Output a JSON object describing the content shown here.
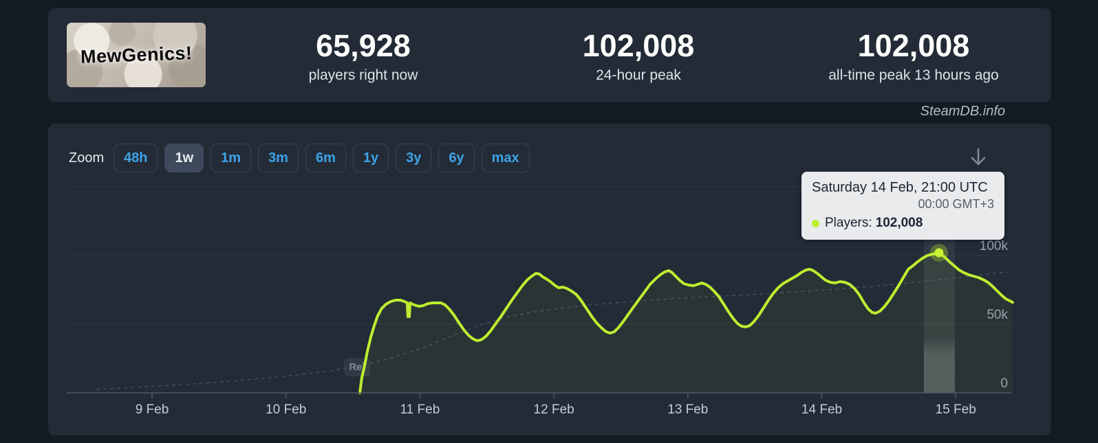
{
  "header": {
    "game_title": "MewGenics!",
    "stats": [
      {
        "value": "65,928",
        "label": "players right now"
      },
      {
        "value": "102,008",
        "label": "24-hour peak"
      },
      {
        "value": "102,008",
        "label": "all-time peak 13 hours ago"
      }
    ]
  },
  "watermark": "SteamDB.info",
  "chart": {
    "zoom_label": "Zoom",
    "zoom_buttons": [
      {
        "label": "48h",
        "selected": false
      },
      {
        "label": "1w",
        "selected": true
      },
      {
        "label": "1m",
        "selected": false
      },
      {
        "label": "3m",
        "selected": false
      },
      {
        "label": "6m",
        "selected": false
      },
      {
        "label": "1y",
        "selected": false
      },
      {
        "label": "3y",
        "selected": false
      },
      {
        "label": "6y",
        "selected": false
      },
      {
        "label": "max",
        "selected": false
      }
    ],
    "release_flag_label": "Rel",
    "tooltip": {
      "title": "Saturday 14 Feb, 21:00 UTC",
      "subtitle": "00:00 GMT+3",
      "series_label": "Players:",
      "value": "102,008"
    }
  },
  "colors": {
    "page_bg": "#141a21",
    "panel_bg": "#222b36",
    "accent_green": "#bdee2f",
    "accent_blue": "#3fa3e8",
    "tooltip_bg": "#e9ebed",
    "gridline": "#2e3842",
    "axis_line": "#4e5a66"
  },
  "chart_data": {
    "type": "line",
    "title": "",
    "x_axis": {
      "unit": "days since 9 Feb 00:00 UTC",
      "tick_values": [
        0,
        1,
        2,
        3,
        4,
        5,
        6
      ],
      "tick_labels": [
        "9 Feb",
        "10 Feb",
        "11 Feb",
        "12 Feb",
        "13 Feb",
        "14 Feb",
        "15 Feb"
      ],
      "range": [
        -0.64,
        6.43
      ]
    },
    "y_axis": {
      "unit": "players (thousands)",
      "tick_values": [
        0,
        50,
        100
      ],
      "tick_labels": [
        "0",
        "50k",
        "100k"
      ],
      "gridline_values": [
        50,
        100,
        150
      ],
      "range": [
        0,
        160
      ]
    },
    "hover_point": {
      "t": 5.875,
      "players": 102008,
      "label": "Saturday 14 Feb, 21:00 UTC"
    },
    "series": [
      {
        "name": "Players",
        "color": "#bdee2f",
        "points": [
          [
            1.551,
            0
          ],
          [
            1.566,
            11
          ],
          [
            1.587,
            20
          ],
          [
            1.607,
            30
          ],
          [
            1.633,
            40.5
          ],
          [
            1.659,
            49
          ],
          [
            1.684,
            56
          ],
          [
            1.715,
            61.5
          ],
          [
            1.746,
            64.5
          ],
          [
            1.782,
            66.5
          ],
          [
            1.818,
            67.5
          ],
          [
            1.854,
            67.5
          ],
          [
            1.885,
            66.5
          ],
          [
            1.905,
            65.5
          ],
          [
            1.91,
            55.5
          ],
          [
            1.921,
            55.5
          ],
          [
            1.926,
            65.5
          ],
          [
            1.957,
            64
          ],
          [
            1.993,
            63
          ],
          [
            2.024,
            63.5
          ],
          [
            2.06,
            65
          ],
          [
            2.096,
            65.5
          ],
          [
            2.126,
            65.5
          ],
          [
            2.157,
            65.5
          ],
          [
            2.188,
            64
          ],
          [
            2.219,
            61
          ],
          [
            2.255,
            56.5
          ],
          [
            2.291,
            51
          ],
          [
            2.327,
            46
          ],
          [
            2.362,
            42
          ],
          [
            2.393,
            39.5
          ],
          [
            2.424,
            38
          ],
          [
            2.455,
            38.5
          ],
          [
            2.491,
            41
          ],
          [
            2.527,
            45
          ],
          [
            2.563,
            50
          ],
          [
            2.604,
            55.5
          ],
          [
            2.645,
            61.5
          ],
          [
            2.686,
            67.5
          ],
          [
            2.727,
            73
          ],
          [
            2.768,
            78.5
          ],
          [
            2.804,
            82.5
          ],
          [
            2.835,
            85
          ],
          [
            2.866,
            87
          ],
          [
            2.891,
            86.5
          ],
          [
            2.917,
            84.5
          ],
          [
            2.943,
            83
          ],
          [
            2.974,
            81
          ],
          [
            3.004,
            78.5
          ],
          [
            3.035,
            76.5
          ],
          [
            3.066,
            77
          ],
          [
            3.097,
            76
          ],
          [
            3.133,
            74
          ],
          [
            3.169,
            71.5
          ],
          [
            3.205,
            67
          ],
          [
            3.246,
            61
          ],
          [
            3.287,
            55
          ],
          [
            3.323,
            50.5
          ],
          [
            3.359,
            47
          ],
          [
            3.39,
            44.5
          ],
          [
            3.42,
            43.5
          ],
          [
            3.451,
            44.5
          ],
          [
            3.482,
            47.5
          ],
          [
            3.518,
            52
          ],
          [
            3.554,
            57
          ],
          [
            3.595,
            62.5
          ],
          [
            3.636,
            68
          ],
          [
            3.677,
            73.5
          ],
          [
            3.718,
            79
          ],
          [
            3.759,
            83
          ],
          [
            3.795,
            86
          ],
          [
            3.826,
            88
          ],
          [
            3.857,
            89
          ],
          [
            3.883,
            87.5
          ],
          [
            3.908,
            85
          ],
          [
            3.939,
            82
          ],
          [
            3.97,
            79.5
          ],
          [
            4.006,
            78.5
          ],
          [
            4.042,
            78
          ],
          [
            4.073,
            79
          ],
          [
            4.104,
            80
          ],
          [
            4.134,
            79
          ],
          [
            4.165,
            77
          ],
          [
            4.196,
            74
          ],
          [
            4.232,
            70
          ],
          [
            4.268,
            64.5
          ],
          [
            4.304,
            59
          ],
          [
            4.34,
            54
          ],
          [
            4.371,
            50.5
          ],
          [
            4.401,
            48.5
          ],
          [
            4.432,
            48
          ],
          [
            4.463,
            49
          ],
          [
            4.494,
            52
          ],
          [
            4.53,
            56.5
          ],
          [
            4.566,
            62
          ],
          [
            4.602,
            67.5
          ],
          [
            4.638,
            72.5
          ],
          [
            4.674,
            76.5
          ],
          [
            4.71,
            79.5
          ],
          [
            4.745,
            81.5
          ],
          [
            4.781,
            83.5
          ],
          [
            4.817,
            85.5
          ],
          [
            4.853,
            88
          ],
          [
            4.884,
            89.5
          ],
          [
            4.91,
            90
          ],
          [
            4.936,
            89
          ],
          [
            4.966,
            87
          ],
          [
            4.997,
            84.5
          ],
          [
            5.028,
            82
          ],
          [
            5.064,
            80.5
          ],
          [
            5.1,
            80
          ],
          [
            5.136,
            81
          ],
          [
            5.172,
            80.5
          ],
          [
            5.208,
            79
          ],
          [
            5.244,
            76
          ],
          [
            5.28,
            71.5
          ],
          [
            5.316,
            65.5
          ],
          [
            5.347,
            61
          ],
          [
            5.377,
            58.5
          ],
          [
            5.403,
            58
          ],
          [
            5.434,
            59.5
          ],
          [
            5.465,
            62.5
          ],
          [
            5.501,
            67
          ],
          [
            5.537,
            72.5
          ],
          [
            5.573,
            78
          ],
          [
            5.609,
            84
          ],
          [
            5.645,
            90
          ],
          [
            5.68,
            92.5
          ],
          [
            5.716,
            95.5
          ],
          [
            5.752,
            98
          ],
          [
            5.788,
            100
          ],
          [
            5.829,
            101
          ],
          [
            5.875,
            102.008
          ],
          [
            5.916,
            99
          ],
          [
            5.952,
            95.5
          ],
          [
            5.988,
            92.5
          ],
          [
            6.024,
            89.5
          ],
          [
            6.06,
            87.5
          ],
          [
            6.096,
            86
          ],
          [
            6.132,
            85
          ],
          [
            6.168,
            84
          ],
          [
            6.204,
            82.5
          ],
          [
            6.24,
            80.5
          ],
          [
            6.276,
            77.5
          ],
          [
            6.312,
            74
          ],
          [
            6.343,
            71
          ],
          [
            6.373,
            68.5
          ],
          [
            6.404,
            67
          ],
          [
            6.425,
            65.9
          ]
        ]
      }
    ],
    "trend_dashed": [
      [
        -0.416,
        2.5
      ],
      [
        0.149,
        5.5
      ],
      [
        0.663,
        9
      ],
      [
        1.073,
        13
      ],
      [
        1.33,
        16
      ],
      [
        1.587,
        20.5
      ],
      [
        1.792,
        25.5
      ],
      [
        1.998,
        32
      ],
      [
        2.203,
        40
      ],
      [
        2.409,
        48
      ],
      [
        2.614,
        54.5
      ],
      [
        2.82,
        58.5
      ],
      [
        3.076,
        62
      ],
      [
        3.333,
        64.5
      ],
      [
        3.641,
        67
      ],
      [
        3.949,
        69
      ],
      [
        4.258,
        70.5
      ],
      [
        4.566,
        72
      ],
      [
        4.874,
        74
      ],
      [
        5.182,
        76
      ],
      [
        5.49,
        78.5
      ],
      [
        5.798,
        81.5
      ],
      [
        6.107,
        85
      ],
      [
        6.389,
        88
      ]
    ],
    "legend": "off",
    "grid": "horizontal-only"
  }
}
